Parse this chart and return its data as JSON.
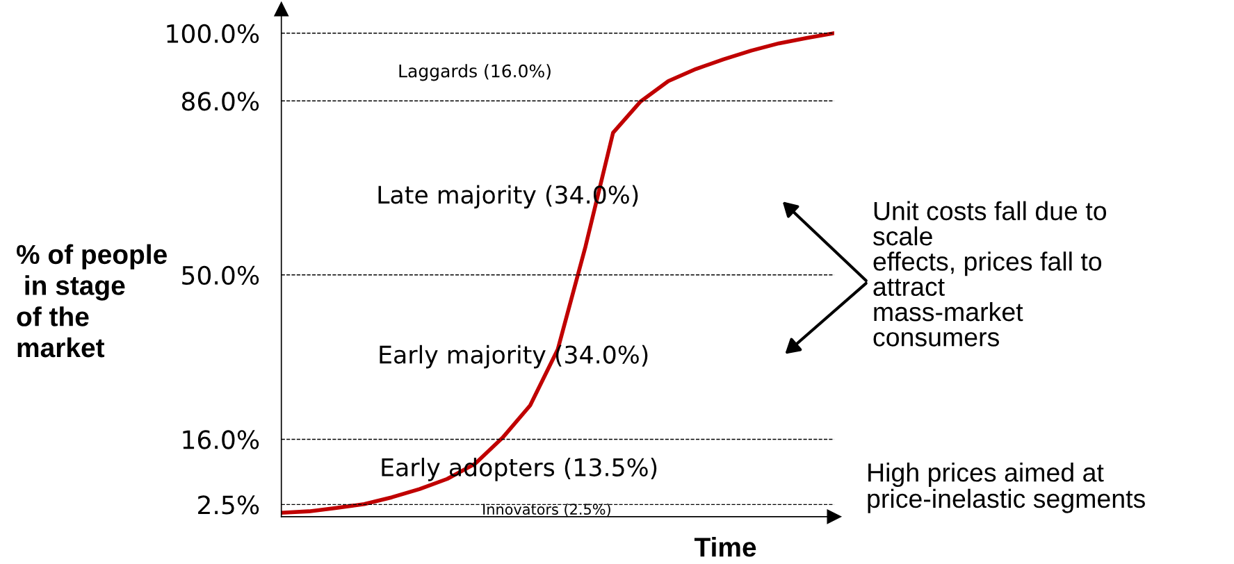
{
  "chart_data": {
    "type": "line",
    "xlabel": "Time",
    "ylabel": "% of people\n in stage\nof the\nmarket",
    "categories": [
      null,
      null,
      null,
      null,
      null,
      null,
      null,
      null,
      null,
      null,
      null,
      null,
      null,
      null,
      null,
      null,
      null,
      null,
      null,
      null,
      null
    ],
    "series": [
      {
        "color": "#c00000",
        "values": [
          0.8,
          1.1,
          1.8,
          2.6,
          4.0,
          5.7,
          7.8,
          10.9,
          16.3,
          23.0,
          34.6,
          55.8,
          79.4,
          85.9,
          90.1,
          92.6,
          94.6,
          96.4,
          97.9,
          99.0,
          100.0
        ]
      }
    ],
    "ylim": [
      0,
      105
    ],
    "yticks": [
      {
        "value": 2.5,
        "label": "2.5%"
      },
      {
        "value": 16,
        "label": "16.0%"
      },
      {
        "value": 50,
        "label": "50.0%"
      },
      {
        "value": 86,
        "label": "86.0%"
      },
      {
        "value": 100,
        "label": "100.0%"
      }
    ],
    "ref_lines": [
      {
        "axis": "y",
        "value": 2.5,
        "line_style": "dashed"
      },
      {
        "axis": "y",
        "value": 16,
        "line_style": "dashed"
      },
      {
        "axis": "y",
        "value": 50,
        "line_style": "dashed"
      },
      {
        "axis": "y",
        "value": 86,
        "line_style": "dashed"
      },
      {
        "axis": "y",
        "value": 100,
        "line_style": "dashed"
      }
    ],
    "annotations": [
      "Laggards (16.0%)",
      "Late majority (34.0%)",
      "Early majority (34.0%)",
      "Early adopters (13.5%)",
      "Innovators (2.5%)",
      "Unit costs fall due to\nscale\neffects, prices fall to\nattract\nmass-market\nconsumers",
      "High prices aimed at\nprice-inelastic segments"
    ],
    "grid": false,
    "legend": false,
    "marker": "none",
    "line_style": "solid"
  }
}
